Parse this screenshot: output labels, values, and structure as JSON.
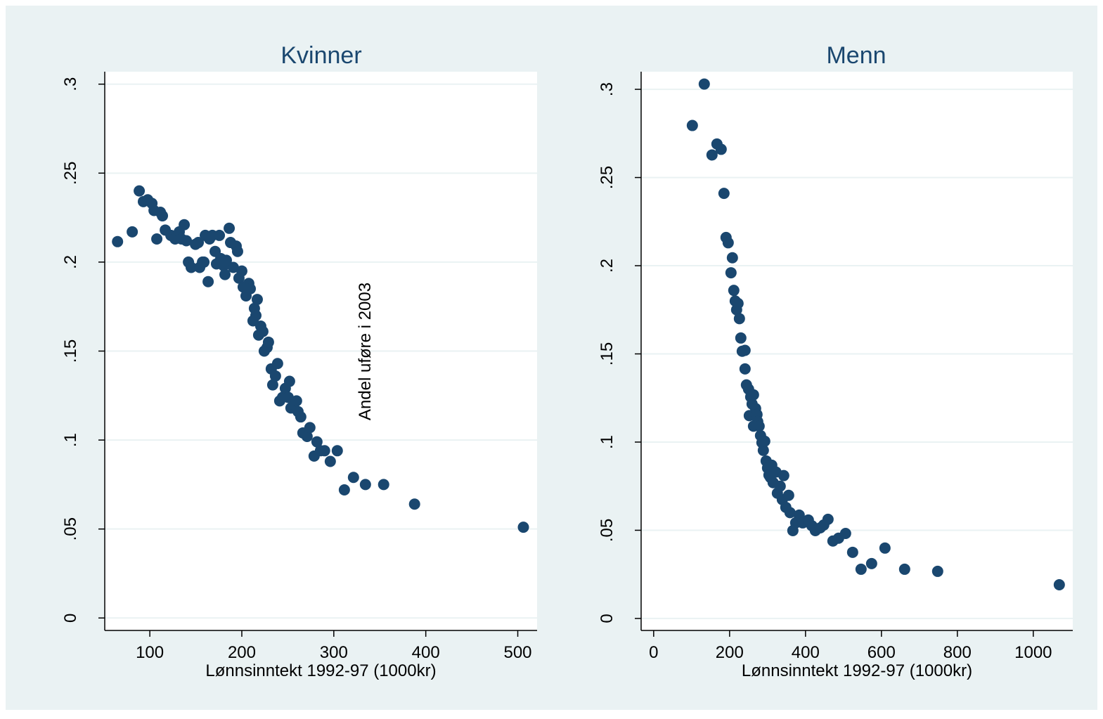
{
  "chart_data": [
    {
      "type": "scatter",
      "title": "Kvinner",
      "xlabel": "Lønnsinntekt 1992-97 (1000kr)",
      "ylabel": "Andel uføre i 2003",
      "color": "#1a476f",
      "grid": true,
      "xlim": [
        51,
        521
      ],
      "ylim": [
        -0.007,
        0.307
      ],
      "xticks": [
        100,
        200,
        300,
        400,
        500
      ],
      "yticks": [
        {
          "value": 0,
          "label": "0"
        },
        {
          "value": 0.05,
          "label": ".05"
        },
        {
          "value": 0.1,
          "label": ".1"
        },
        {
          "value": 0.15,
          "label": ".15"
        },
        {
          "value": 0.2,
          "label": ".2"
        },
        {
          "value": 0.25,
          "label": ".25"
        },
        {
          "value": 0.3,
          "label": ".3"
        }
      ],
      "x": [
        64.9,
        80.9,
        88.5,
        93,
        97.7,
        102.3,
        104.6,
        111.5,
        113.7,
        107.6,
        116.8,
        122.9,
        127.5,
        132,
        134.4,
        137.4,
        139.7,
        142,
        145,
        149.6,
        152.7,
        154.2,
        157.3,
        158.8,
        160.3,
        163.4,
        164.9,
        168,
        171,
        172.5,
        175.6,
        177.1,
        180.2,
        181.7,
        183.2,
        186.3,
        187.8,
        190.8,
        193.9,
        195.4,
        196.9,
        200,
        201.5,
        204.6,
        207.6,
        209.2,
        212.2,
        213.7,
        215.3,
        216.8,
        218.3,
        220.6,
        222.9,
        224.4,
        227.5,
        229,
        232,
        233.6,
        236.6,
        238.9,
        241.2,
        244.3,
        247.3,
        250.4,
        251.9,
        253.4,
        256.5,
        259.5,
        261.1,
        264.1,
        266.4,
        271,
        274,
        278.6,
        281.7,
        285.5,
        290,
        296.2,
        303.8,
        311.5,
        321.4,
        334.4,
        354.2,
        387.8,
        506.1
      ],
      "values": [
        0.2115,
        0.217,
        0.24,
        0.234,
        0.235,
        0.233,
        0.229,
        0.228,
        0.226,
        0.213,
        0.218,
        0.215,
        0.213,
        0.217,
        0.213,
        0.221,
        0.212,
        0.2,
        0.197,
        0.21,
        0.211,
        0.197,
        0.2,
        0.2,
        0.215,
        0.189,
        0.213,
        0.215,
        0.206,
        0.199,
        0.215,
        0.202,
        0.198,
        0.193,
        0.201,
        0.219,
        0.211,
        0.197,
        0.209,
        0.206,
        0.191,
        0.195,
        0.186,
        0.181,
        0.188,
        0.185,
        0.167,
        0.174,
        0.17,
        0.179,
        0.159,
        0.164,
        0.161,
        0.15,
        0.152,
        0.155,
        0.14,
        0.131,
        0.136,
        0.143,
        0.122,
        0.124,
        0.129,
        0.124,
        0.133,
        0.118,
        0.12,
        0.122,
        0.116,
        0.113,
        0.104,
        0.102,
        0.107,
        0.091,
        0.099,
        0.094,
        0.094,
        0.088,
        0.094,
        0.072,
        0.079,
        0.075,
        0.075,
        0.064,
        0.051
      ]
    },
    {
      "type": "scatter",
      "title": "Menn",
      "xlabel": "Lønnsinntekt 1992-97 (1000kr)",
      "color": "#1a476f",
      "grid": true,
      "xlim": [
        -33,
        1104
      ],
      "ylim": [
        -0.0068,
        0.31
      ],
      "xticks": [
        0,
        200,
        400,
        600,
        800,
        1000
      ],
      "yticks": [
        {
          "value": 0,
          "label": "0"
        },
        {
          "value": 0.05,
          "label": ".05"
        },
        {
          "value": 0.1,
          "label": ".1"
        },
        {
          "value": 0.15,
          "label": ".15"
        },
        {
          "value": 0.2,
          "label": ".2"
        },
        {
          "value": 0.25,
          "label": ".25"
        },
        {
          "value": 0.3,
          "label": ".3"
        }
      ],
      "x": [
        101.9,
        133.3,
        153.7,
        166.7,
        177.8,
        185.2,
        190.7,
        196.3,
        203.7,
        207.4,
        211.1,
        214.8,
        218.5,
        222.2,
        225.9,
        229.6,
        233.3,
        240.7,
        240.7,
        244.4,
        250,
        251.9,
        255.6,
        259.3,
        263,
        263,
        268.5,
        272.2,
        274.1,
        277.8,
        281.5,
        285.2,
        288.9,
        292.6,
        296.3,
        300,
        303.7,
        307.4,
        311.1,
        314.8,
        322.2,
        325.9,
        333.3,
        338.9,
        342.6,
        348.1,
        355.6,
        359.3,
        366.7,
        374.1,
        383.3,
        392.6,
        407.4,
        416.7,
        425.9,
        438.9,
        448.1,
        459.3,
        472.2,
        487,
        505.6,
        524.1,
        546.3,
        574.1,
        609.3,
        661.1,
        748.1,
        1068.5
      ],
      "values": [
        0.2795,
        0.303,
        0.2628,
        0.269,
        0.266,
        0.241,
        0.216,
        0.213,
        0.196,
        0.2045,
        0.186,
        0.18,
        0.175,
        0.1786,
        0.17,
        0.159,
        0.1515,
        0.152,
        0.1415,
        0.1324,
        0.13,
        0.115,
        0.1256,
        0.1216,
        0.1268,
        0.109,
        0.119,
        0.1156,
        0.1116,
        0.109,
        0.1037,
        0.0997,
        0.0953,
        0.1005,
        0.0893,
        0.0853,
        0.0813,
        0.08,
        0.0869,
        0.077,
        0.083,
        0.071,
        0.075,
        0.0674,
        0.081,
        0.063,
        0.0698,
        0.06,
        0.0498,
        0.0542,
        0.0586,
        0.0542,
        0.0558,
        0.0526,
        0.0498,
        0.0514,
        0.053,
        0.0562,
        0.0439,
        0.0455,
        0.0482,
        0.0375,
        0.0279,
        0.0311,
        0.0399,
        0.0279,
        0.0267,
        0.0191
      ]
    }
  ]
}
